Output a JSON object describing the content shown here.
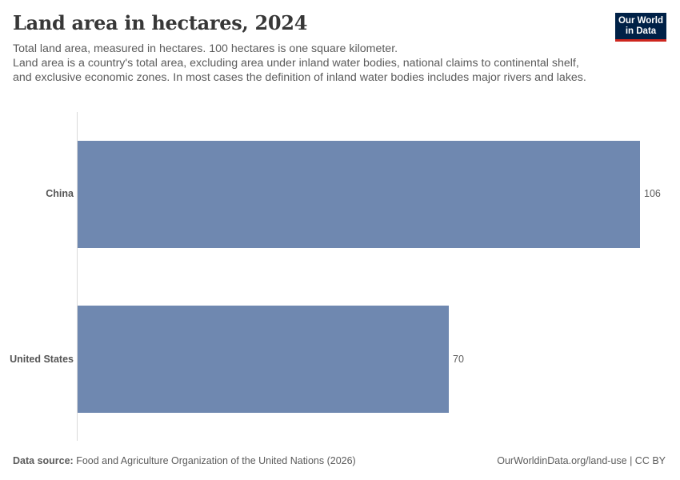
{
  "header": {
    "title": "Land area in hectares, 2024",
    "subtitle_line1": "Total land area, measured in hectares. 100 hectares is one square kilometer.",
    "subtitle_line2": "Land area is a country's total area, excluding area under inland water bodies, national claims to continental shelf, and exclusive economic zones. In most cases the definition of inland water bodies includes major rivers and lakes."
  },
  "logo": {
    "line1": "Our World",
    "line2": "in Data",
    "bg_color": "#002147",
    "accent_color": "#ce261e"
  },
  "chart_data": {
    "type": "bar",
    "orientation": "horizontal",
    "title": "Land area in hectares, 2024",
    "subtitle": "Total land area, measured in hectares. 100 hectares is one square kilometer.",
    "categories": [
      "China",
      "United States"
    ],
    "values": [
      106,
      70
    ],
    "value_labels": [
      "106",
      "70"
    ],
    "xlabel": "",
    "ylabel": "",
    "xlim": [
      0,
      106
    ],
    "grid": false,
    "legend": null,
    "bar_color": "#6f88b0"
  },
  "bars": [
    {
      "label": "China",
      "value_label": "106"
    },
    {
      "label": "United States",
      "value_label": "70"
    }
  ],
  "footer": {
    "source_label": "Data source:",
    "source_text": " Food and Agriculture Organization of the United Nations (2026)",
    "link_text": "OurWorldinData.org/land-use | CC BY"
  }
}
